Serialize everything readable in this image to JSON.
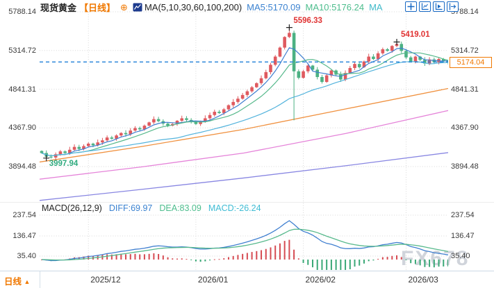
{
  "header": {
    "symbol": "现货黄金",
    "period_tag": "【日线】",
    "add_icon": "⊕",
    "ma_settings": "MA(5,10,30,60,100,200)",
    "ma5_label": "MA5:5170.09",
    "ma10_label": "MA10:5176.24",
    "ma30_label_truncated": "MA"
  },
  "macd_pane": {
    "title": "MACD(26,12,9)",
    "diff_label": "DIFF:69.97",
    "dea_label": "DEA:83.09",
    "macd_label": "MACD:-26.24"
  },
  "bottom": {
    "period_label": "日线",
    "period_arrow": "▲"
  },
  "watermark": "FX678",
  "colors": {
    "up": "#df5a5f",
    "down": "#4cb183",
    "ma5": "#3f7fd0",
    "ma10": "#57b98c",
    "ma30": "#52b3dc",
    "ma60": "#f0913f",
    "ma100": "#e583d9",
    "ma200": "#8886e2",
    "price_line": "#1f80d8",
    "accent_orange": "#f07800",
    "annotation_red": "#e03232",
    "annotation_green": "#2faa7e",
    "hist_pos": "#d64b52",
    "hist_neg": "#3aa876",
    "grid": "#d8d8d8",
    "icon_blue": "#1668c4"
  },
  "chart_data": {
    "type": "candlestick",
    "title": "现货黄金 日线 (Spot Gold Daily)",
    "y_ticks": [
      5788.14,
      5314.72,
      4841.31,
      4367.9,
      3894.48
    ],
    "macd_ticks": [
      237.54,
      136.47,
      35.4
    ],
    "current_price": "5174.04",
    "current_price_value": 5174.04,
    "legend_values": {
      "ma5": 5170.09,
      "ma10": 5176.24,
      "diff": 69.97,
      "dea": 83.09,
      "macd": -26.24
    },
    "x_labels": [
      {
        "text": "2025/12",
        "index": 10
      },
      {
        "text": "2026/01",
        "index": 33
      },
      {
        "text": "2026/02",
        "index": 56
      },
      {
        "text": "2026/03",
        "index": 78
      }
    ],
    "annotations": [
      {
        "id": "high",
        "text": "5596.33",
        "price": 5596.33,
        "index": 53,
        "placement": "above",
        "color_key": "annotation_red"
      },
      {
        "id": "recent-high",
        "text": "5419.01",
        "price": 5419.01,
        "index": 76,
        "placement": "above",
        "color_key": "annotation_red"
      },
      {
        "id": "low",
        "text": "3997.94",
        "price": 3997.94,
        "index": 1,
        "placement": "below",
        "color_key": "annotation_green"
      }
    ],
    "first_open": 4085,
    "closes": [
      4060,
      4015,
      4005,
      4045,
      4080,
      4060,
      4100,
      4135,
      4110,
      4145,
      4175,
      4155,
      4190,
      4215,
      4250,
      4235,
      4275,
      4305,
      4290,
      4335,
      4365,
      4350,
      4395,
      4435,
      4475,
      4450,
      4420,
      4395,
      4415,
      4455,
      4485,
      4465,
      4440,
      4415,
      4445,
      4485,
      4525,
      4565,
      4550,
      4595,
      4645,
      4685,
      4725,
      4770,
      4815,
      4865,
      4915,
      4975,
      5050,
      5140,
      5240,
      5350,
      5480,
      5530,
      5060,
      4980,
      5060,
      5130,
      5080,
      4990,
      4930,
      5010,
      5070,
      5020,
      4960,
      5040,
      5100,
      5150,
      5110,
      5180,
      5240,
      5210,
      5280,
      5330,
      5310,
      5370,
      5395,
      5310,
      5230,
      5180,
      5240,
      5200,
      5155,
      5205,
      5170,
      5210,
      5185,
      5174.04
    ],
    "wick_overrides": {
      "1": {
        "low": 3997.94
      },
      "53": {
        "high": 5596.33
      },
      "54": {
        "low": 4460
      },
      "76": {
        "high": 5419.01
      }
    },
    "ma_trend_lines": {
      "fracs": [
        0,
        0.25,
        0.5,
        0.75,
        1
      ],
      "ma60": [
        3950,
        4140,
        4350,
        4600,
        4850
      ],
      "ma100": [
        3740,
        3890,
        4060,
        4300,
        4580
      ],
      "ma200": [
        3480,
        3615,
        3755,
        3905,
        4065
      ]
    },
    "macd_params": {
      "slow": 26,
      "fast": 12,
      "signal": 9
    }
  }
}
